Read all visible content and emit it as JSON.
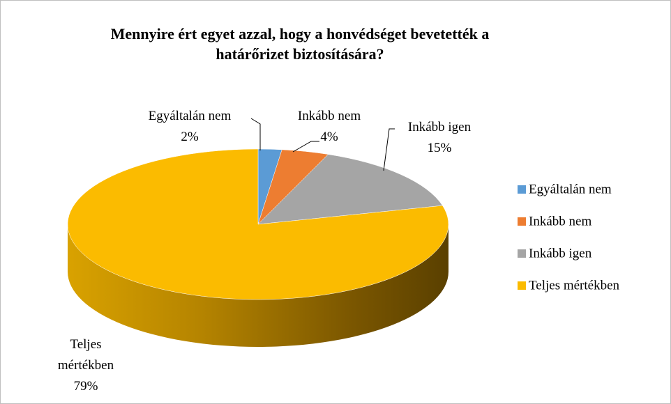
{
  "chart_data": {
    "type": "pie",
    "title": "Mennyire ért egyet azzal, hogy a honvédséget bevetették a határőrizet biztosítására?",
    "categories": [
      "Egyáltalán nem",
      "Inkább nem",
      "Inkább igen",
      "Teljes mértékben"
    ],
    "values": [
      2,
      4,
      15,
      79
    ],
    "value_labels": [
      "2%",
      "4%",
      "15%",
      "79%"
    ],
    "colors": [
      "#5b9bd5",
      "#ed7d31",
      "#a5a5a5",
      "#fbbb00"
    ],
    "legend": "right"
  }
}
